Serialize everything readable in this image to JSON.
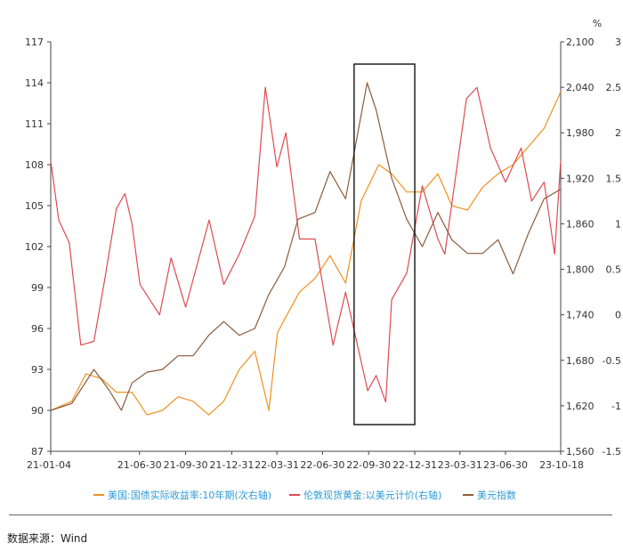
{
  "chart_data": {
    "type": "line",
    "left_axis": {
      "min": 87,
      "max": 117,
      "ticks": [
        87,
        90,
        93,
        96,
        99,
        102,
        105,
        108,
        111,
        114,
        117
      ]
    },
    "gold_axis": {
      "min": 1560,
      "max": 2100,
      "ticks": [
        "1,560",
        "1,620",
        "1,680",
        "1,740",
        "1,800",
        "1,860",
        "1,920",
        "1,980",
        "2,040",
        "2,100"
      ]
    },
    "yield_axis": {
      "unit": "%",
      "min": -1.5,
      "max": 3,
      "ticks": [
        "-1.5",
        "-1",
        "-0.5",
        "0",
        "0.5",
        "1",
        "1.5",
        "2",
        "2.5",
        "3"
      ]
    },
    "x_ticks": [
      "21-01-04",
      "21-06-30",
      "21-09-30",
      "21-12-31",
      "22-03-31",
      "22-06-30",
      "22-09-30",
      "22-12-31",
      "23-03-31",
      "23-06-30",
      "23-10-18"
    ],
    "highlight_box": {
      "x_from": "22-09-01",
      "x_to": "22-12-31"
    },
    "series": [
      {
        "name": "美国:国债实际收益率:10年期(次右轴)",
        "axis": "yield",
        "color": "#f0901e",
        "x": [
          "21-01-04",
          "21-02-15",
          "21-03-15",
          "21-04-15",
          "21-05-15",
          "21-06-15",
          "21-07-15",
          "21-08-15",
          "21-09-15",
          "21-10-15",
          "21-11-15",
          "21-12-15",
          "22-01-15",
          "22-02-15",
          "22-03-15",
          "22-04-01",
          "22-04-15",
          "22-05-15",
          "22-06-15",
          "22-07-15",
          "22-08-15",
          "22-09-15",
          "22-10-20",
          "22-11-15",
          "22-12-15",
          "23-01-15",
          "23-02-15",
          "23-03-15",
          "23-04-15",
          "23-05-15",
          "23-06-15",
          "23-07-15",
          "23-08-15",
          "23-09-15",
          "23-10-18"
        ],
        "values": [
          -1.05,
          -0.95,
          -0.65,
          -0.7,
          -0.85,
          -0.85,
          -1.1,
          -1.05,
          -0.9,
          -0.95,
          -1.1,
          -0.95,
          -0.6,
          -0.4,
          -1.05,
          -0.2,
          -0.05,
          0.25,
          0.4,
          0.65,
          0.35,
          1.25,
          1.65,
          1.55,
          1.35,
          1.35,
          1.55,
          1.2,
          1.15,
          1.4,
          1.55,
          1.65,
          1.85,
          2.05,
          2.45
        ]
      },
      {
        "name": "伦敦现货黄金:以美元计价(右轴)",
        "axis": "gold",
        "color": "#dd4b52",
        "x": [
          "21-01-04",
          "21-01-20",
          "21-02-10",
          "21-03-05",
          "21-03-31",
          "21-04-20",
          "21-05-15",
          "21-06-01",
          "21-06-15",
          "21-07-01",
          "21-08-09",
          "21-09-01",
          "21-09-30",
          "21-11-16",
          "21-12-15",
          "22-01-15",
          "22-02-15",
          "22-03-08",
          "22-03-31",
          "22-04-18",
          "22-05-15",
          "22-06-15",
          "22-07-21",
          "22-08-15",
          "22-09-28",
          "22-10-15",
          "22-11-03",
          "22-11-15",
          "22-12-15",
          "23-01-15",
          "23-02-15",
          "23-03-01",
          "23-04-13",
          "23-05-04",
          "23-05-31",
          "23-06-30",
          "23-07-31",
          "23-08-21",
          "23-09-15",
          "23-10-06",
          "23-10-18"
        ],
        "values": [
          1943,
          1865,
          1835,
          1700,
          1705,
          1780,
          1880,
          1900,
          1860,
          1780,
          1740,
          1815,
          1750,
          1865,
          1780,
          1820,
          1870,
          2040,
          1935,
          1980,
          1840,
          1840,
          1700,
          1770,
          1640,
          1660,
          1625,
          1760,
          1795,
          1910,
          1840,
          1820,
          2025,
          2040,
          1960,
          1915,
          1960,
          1890,
          1915,
          1820,
          1943
        ]
      },
      {
        "name": "美元指数",
        "axis": "left",
        "color": "#8a5c3c",
        "x": [
          "21-01-04",
          "21-02-15",
          "21-03-31",
          "21-04-30",
          "21-05-25",
          "21-06-15",
          "21-07-15",
          "21-08-15",
          "21-09-15",
          "21-10-15",
          "21-11-15",
          "21-12-15",
          "22-01-15",
          "22-02-15",
          "22-03-15",
          "22-04-15",
          "22-05-12",
          "22-06-15",
          "22-07-15",
          "22-08-15",
          "22-09-27",
          "22-10-15",
          "22-11-15",
          "22-12-15",
          "23-01-15",
          "23-02-15",
          "23-03-15",
          "23-04-15",
          "23-05-15",
          "23-06-15",
          "23-07-15",
          "23-08-15",
          "23-09-15",
          "23-10-18"
        ],
        "values": [
          90,
          90.5,
          93,
          91.5,
          90,
          92,
          92.8,
          93,
          94,
          94,
          95.5,
          96.5,
          95.5,
          96,
          98.5,
          100.5,
          104,
          104.5,
          107.5,
          105.5,
          114,
          112,
          107,
          104,
          102,
          104.5,
          102.5,
          101.5,
          101.5,
          102.5,
          100,
          103,
          105.5,
          106.2
        ]
      }
    ],
    "legend_placement": "bottom"
  },
  "footer": {
    "source_label": "数据来源：Wind"
  }
}
